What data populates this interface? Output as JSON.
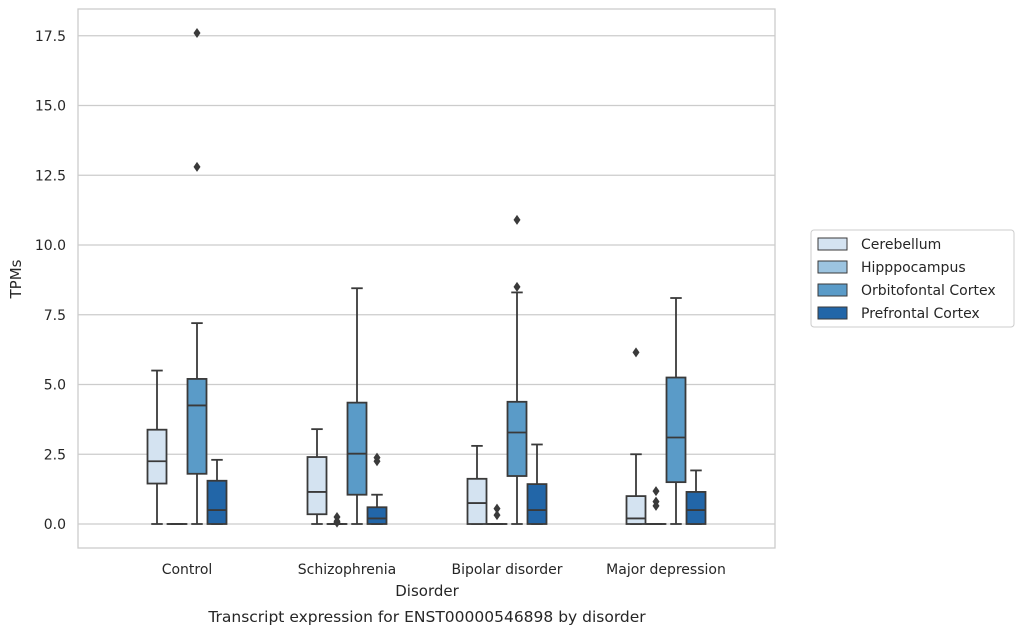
{
  "chart_data": {
    "type": "box",
    "caption": "Transcript expression for ENST00000546898 by disorder",
    "xlabel": "Disorder",
    "ylabel": "TPMs",
    "ylim": [
      -0.85,
      18.5
    ],
    "yticks": [
      0.0,
      2.5,
      5.0,
      7.5,
      10.0,
      12.5,
      15.0,
      17.5
    ],
    "ytick_labels": [
      "0.0",
      "2.5",
      "5.0",
      "7.5",
      "10.0",
      "12.5",
      "15.0",
      "17.5"
    ],
    "grid": "horizontal",
    "legend_position": "right",
    "categories": [
      "Control",
      "Schizophrenia",
      "Bipolar disorder",
      "Major depression"
    ],
    "series": [
      {
        "name": "Cerebellum",
        "color": "#d4e3f1",
        "boxes": [
          {
            "whislo": 0.0,
            "q1": 1.45,
            "med": 2.25,
            "q3": 3.38,
            "whishi": 5.5,
            "fliers": []
          },
          {
            "whislo": 0.0,
            "q1": 0.35,
            "med": 1.15,
            "q3": 2.4,
            "whishi": 3.4,
            "fliers": []
          },
          {
            "whislo": 0.0,
            "q1": 0.0,
            "med": 0.75,
            "q3": 1.62,
            "whishi": 2.8,
            "fliers": []
          },
          {
            "whislo": 0.0,
            "q1": 0.0,
            "med": 0.2,
            "q3": 1.0,
            "whishi": 2.5,
            "fliers": [
              6.15
            ]
          }
        ]
      },
      {
        "name": "Hipppocampus",
        "color": "#9cc4e0",
        "boxes": [
          {
            "whislo": 0.0,
            "q1": 0.0,
            "med": 0.0,
            "q3": 0.0,
            "whishi": 0.0,
            "fliers": []
          },
          {
            "whislo": 0.0,
            "q1": 0.0,
            "med": 0.0,
            "q3": 0.0,
            "whishi": 0.0,
            "fliers": [
              0.25,
              0.1,
              0.05
            ]
          },
          {
            "whislo": 0.0,
            "q1": 0.0,
            "med": 0.0,
            "q3": 0.0,
            "whishi": 0.0,
            "fliers": [
              0.55,
              0.32
            ]
          },
          {
            "whislo": 0.0,
            "q1": 0.0,
            "med": 0.0,
            "q3": 0.0,
            "whishi": 0.0,
            "fliers": [
              1.18,
              0.8,
              0.65
            ]
          }
        ]
      },
      {
        "name": "Orbitofontal Cortex",
        "color": "#5a9bc8",
        "boxes": [
          {
            "whislo": 0.0,
            "q1": 1.8,
            "med": 4.25,
            "q3": 5.2,
            "whishi": 7.2,
            "fliers": [
              12.8,
              17.6
            ]
          },
          {
            "whislo": 0.0,
            "q1": 1.05,
            "med": 2.52,
            "q3": 4.35,
            "whishi": 8.45,
            "fliers": []
          },
          {
            "whislo": 0.0,
            "q1": 1.72,
            "med": 3.28,
            "q3": 4.38,
            "whishi": 8.3,
            "fliers": [
              8.5,
              10.9
            ]
          },
          {
            "whislo": 0.0,
            "q1": 1.5,
            "med": 3.1,
            "q3": 5.25,
            "whishi": 8.1,
            "fliers": []
          }
        ]
      },
      {
        "name": "Prefrontal Cortex",
        "color": "#2266a8",
        "boxes": [
          {
            "whislo": 0.0,
            "q1": 0.0,
            "med": 0.5,
            "q3": 1.55,
            "whishi": 2.3,
            "fliers": []
          },
          {
            "whislo": 0.0,
            "q1": 0.0,
            "med": 0.2,
            "q3": 0.6,
            "whishi": 1.05,
            "fliers": [
              2.38,
              2.25
            ]
          },
          {
            "whislo": 0.0,
            "q1": 0.0,
            "med": 0.5,
            "q3": 1.43,
            "whishi": 2.85,
            "fliers": []
          },
          {
            "whislo": 0.0,
            "q1": 0.0,
            "med": 0.5,
            "q3": 1.15,
            "whishi": 1.92,
            "fliers": []
          }
        ]
      }
    ],
    "line_color": "#3a3a3a",
    "grid_color": "#cccccc",
    "frame_color": "#cccccc"
  }
}
